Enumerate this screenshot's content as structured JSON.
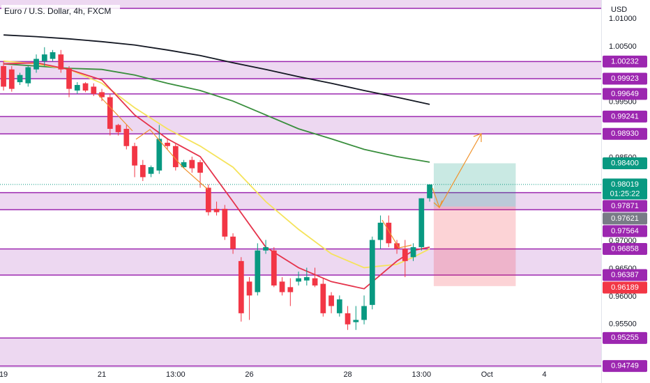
{
  "chart_data": {
    "type": "candlestick",
    "title": "Euro / U.S. Dollar, 4h, FXCM",
    "currency": "USD",
    "up_color": "#089981",
    "down_color": "#f23645",
    "xlim": [
      -0.43,
      72.93
    ],
    "ylim": [
      0.9472,
      1.0134
    ],
    "xticks": [
      {
        "value": 0,
        "label": "19"
      },
      {
        "value": 12,
        "label": "21"
      },
      {
        "value": 21,
        "label": "13:00"
      },
      {
        "value": 30,
        "label": "26"
      },
      {
        "value": 42,
        "label": "28"
      },
      {
        "value": 51,
        "label": "13:00"
      },
      {
        "value": 59,
        "label": "Oct"
      },
      {
        "value": 66,
        "label": "4"
      }
    ],
    "yticks": [
      {
        "value": 1.01,
        "label": "1.01000"
      },
      {
        "value": 1.005,
        "label": "1.00500"
      },
      {
        "value": 0.995,
        "label": "0.99500"
      },
      {
        "value": 0.985,
        "label": "0.98500"
      },
      {
        "value": 0.97,
        "label": "0.97000"
      },
      {
        "value": 0.965,
        "label": "0.96500"
      },
      {
        "value": 0.96,
        "label": "0.96000"
      },
      {
        "value": 0.955,
        "label": "0.95500"
      }
    ],
    "ohlc": [
      [
        1.0015,
        1.0024,
        0.9971,
        0.9978
      ],
      [
        1.0009,
        1.0015,
        0.9969,
        0.9974
      ],
      [
        0.9986,
        1.0003,
        0.9981,
        0.9999
      ],
      [
        0.9984,
        1.0015,
        0.9978,
        1.0013
      ],
      [
        1.0009,
        1.0036,
        1.0003,
        1.0028
      ],
      [
        1.0024,
        1.0049,
        1.0015,
        1.0036
      ],
      [
        1.0028,
        1.0044,
        1.0024,
        1.004
      ],
      [
        1.0036,
        1.0044,
        1.0003,
        1.0009
      ],
      [
        1.0011,
        1.0015,
        0.9959,
        0.9974
      ],
      [
        0.9971,
        0.9986,
        0.9965,
        0.9981
      ],
      [
        0.9984,
        0.9986,
        0.9968,
        0.9971
      ],
      [
        0.9978,
        0.9984,
        0.9961,
        0.9965
      ],
      [
        0.9968,
        0.9974,
        0.9952,
        0.9959
      ],
      [
        0.9959,
        0.9965,
        0.989,
        0.9902
      ],
      [
        0.9909,
        0.9911,
        0.989,
        0.9896
      ],
      [
        0.9902,
        0.9909,
        0.9865,
        0.9871
      ],
      [
        0.9871,
        0.9877,
        0.9815,
        0.9836
      ],
      [
        0.9837,
        0.9846,
        0.9808,
        0.9815
      ],
      [
        0.9821,
        0.9836,
        0.9815,
        0.9833
      ],
      [
        0.9827,
        0.9909,
        0.9821,
        0.9884
      ],
      [
        0.9877,
        0.9884,
        0.9865,
        0.9871
      ],
      [
        0.9871,
        0.9877,
        0.9827,
        0.9833
      ],
      [
        0.9833,
        0.9846,
        0.9831,
        0.9842
      ],
      [
        0.9846,
        0.9852,
        0.9823,
        0.9831
      ],
      [
        0.9842,
        0.9846,
        0.9796,
        0.9823
      ],
      [
        0.9796,
        0.9802,
        0.9746,
        0.9752
      ],
      [
        0.9758,
        0.9771,
        0.9746,
        0.9752
      ],
      [
        0.9758,
        0.9765,
        0.9702,
        0.9708
      ],
      [
        0.9708,
        0.9714,
        0.9677,
        0.9686
      ],
      [
        0.9664,
        0.9671,
        0.9555,
        0.957
      ],
      [
        0.9627,
        0.9635,
        0.9558,
        0.9602
      ],
      [
        0.9608,
        0.9696,
        0.9602,
        0.9683
      ],
      [
        0.9683,
        0.9702,
        0.9677,
        0.9689
      ],
      [
        0.9683,
        0.9689,
        0.9617,
        0.962
      ],
      [
        0.9627,
        0.9635,
        0.9602,
        0.9608
      ],
      [
        0.9617,
        0.9633,
        0.9583,
        0.9608
      ],
      [
        0.9627,
        0.9645,
        0.962,
        0.9633
      ],
      [
        0.9629,
        0.9652,
        0.962,
        0.9635
      ],
      [
        0.9633,
        0.9652,
        0.9617,
        0.962
      ],
      [
        0.9623,
        0.9633,
        0.9564,
        0.957
      ],
      [
        0.9602,
        0.9608,
        0.957,
        0.9583
      ],
      [
        0.957,
        0.9602,
        0.9564,
        0.9595
      ],
      [
        0.957,
        0.9583,
        0.954,
        0.955
      ],
      [
        0.9554,
        0.9583,
        0.954,
        0.9558
      ],
      [
        0.9558,
        0.9602,
        0.955,
        0.9583
      ],
      [
        0.9585,
        0.9708,
        0.9577,
        0.9702
      ],
      [
        0.9702,
        0.9746,
        0.9686,
        0.9733
      ],
      [
        0.9733,
        0.9746,
        0.9689,
        0.9696
      ],
      [
        0.9696,
        0.9702,
        0.9677,
        0.9686
      ],
      [
        0.9686,
        0.9702,
        0.9635,
        0.9664
      ],
      [
        0.9671,
        0.9696,
        0.9664,
        0.9689
      ],
      [
        0.9689,
        0.9777,
        0.9683,
        0.9777
      ],
      [
        0.9777,
        0.9802,
        0.9771,
        0.98019
      ]
    ],
    "countdown": "01:25:22",
    "series": [
      {
        "color": "#131722",
        "x": [
          0,
          4,
          8,
          12,
          16,
          20,
          24,
          28,
          32,
          36,
          40,
          44,
          48,
          52
        ],
        "values": [
          1.0071,
          1.0068,
          1.0064,
          1.0059,
          1.0053,
          1.0044,
          1.0034,
          1.0021,
          1.0009,
          0.9996,
          0.9984,
          0.9971,
          0.9959,
          0.9946
        ]
      },
      {
        "color": "#388e3c",
        "x": [
          0,
          4,
          8,
          12,
          16,
          20,
          24,
          28,
          32,
          36,
          40,
          44,
          48,
          52
        ],
        "values": [
          1.0019,
          1.0015,
          1.0011,
          1.0009,
          0.9999,
          0.9984,
          0.9971,
          0.9952,
          0.9927,
          0.9902,
          0.9884,
          0.9865,
          0.9852,
          0.9842
        ]
      },
      {
        "color": "#f5e35b",
        "x": [
          0,
          4,
          8,
          12,
          16,
          20,
          24,
          28,
          32,
          36,
          40,
          44,
          48,
          50,
          52
        ],
        "values": [
          1.0024,
          1.0019,
          1.0009,
          0.9984,
          0.994,
          0.9902,
          0.9871,
          0.9833,
          0.9771,
          0.9721,
          0.9677,
          0.9652,
          0.9658,
          0.9671,
          0.9686
        ]
      },
      {
        "color": "#e5334b",
        "x": [
          0,
          4,
          8,
          12,
          16,
          20,
          24,
          28,
          32,
          36,
          40,
          44,
          48,
          50,
          52
        ],
        "values": [
          1.0019,
          1.0021,
          1.0009,
          0.999,
          0.9927,
          0.9884,
          0.9852,
          0.9771,
          0.9689,
          0.9652,
          0.9627,
          0.9614,
          0.9664,
          0.9683,
          0.9689
        ]
      }
    ],
    "level_color": "#9c27b0",
    "top_band": 1.0119,
    "bands": [
      {
        "top": 1.00232,
        "bottom": 0.99923
      },
      {
        "top": 0.99241,
        "bottom": {
          "value": 0.9893,
          "label": "0.98930"
        }
      },
      {
        "top": 0.97871,
        "bottom": 0.97564
      },
      {
        "top": 0.96858,
        "bottom": 0.96387
      },
      {
        "top": 0.95255,
        "bottom": 0.94749
      }
    ],
    "levels": [
      0.99649
    ],
    "position": {
      "target": {
        "value": 0.984,
        "label": "0.98400"
      },
      "entry": 0.97621,
      "stop": 0.96189
    }
  }
}
